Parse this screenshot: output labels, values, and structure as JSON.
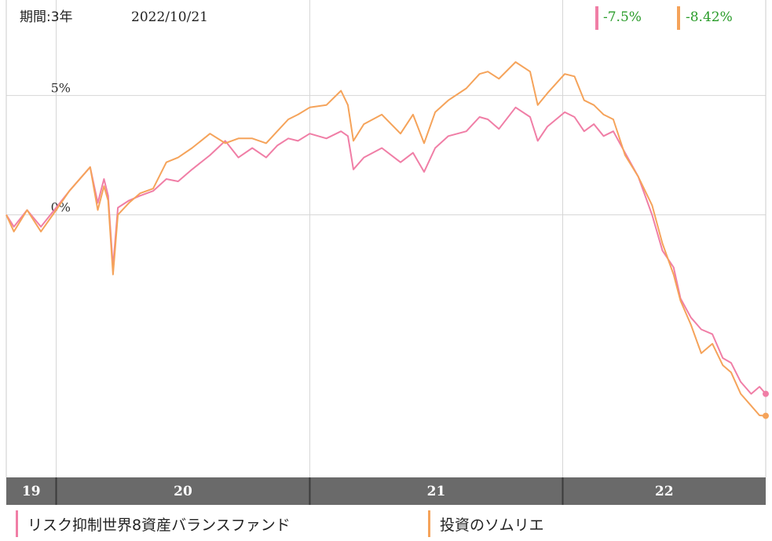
{
  "header": {
    "period_label": "期間:3年",
    "date": "2022/10/21"
  },
  "summary": [
    {
      "value": "-7.5%",
      "color": "#f07ea6"
    },
    {
      "value": "-8.42%",
      "color": "#f5a35a"
    }
  ],
  "colors": {
    "positive_text": "#2a9c2a",
    "axis_band": "#6a6a6a",
    "grid": "#d6d6d6"
  },
  "legend": [
    {
      "label": "リスク抑制世界8資産バランスファンド",
      "color": "#f07ea6"
    },
    {
      "label": "投資のソムリエ",
      "color": "#f5a35a"
    }
  ],
  "chart_data": {
    "type": "line",
    "x_range": [
      "2019-10-21",
      "2022-10-21"
    ],
    "ylim": [
      -11,
      9
    ],
    "grid": true,
    "y_ticks": [
      {
        "value": 0,
        "label": "0%"
      },
      {
        "value": 5,
        "label": "5%"
      }
    ],
    "year_ticks": [
      {
        "date": "2019-10-21",
        "label": "19"
      },
      {
        "date": "2020-01-01",
        "label": "20"
      },
      {
        "date": "2021-01-01",
        "label": "21"
      },
      {
        "date": "2022-01-01",
        "label": "22"
      }
    ],
    "series": [
      {
        "name": "リスク抑制世界8資産バランスファンド",
        "color": "#f07ea6",
        "points": [
          [
            "2019-10-21",
            0.0
          ],
          [
            "2019-11-01",
            -0.5
          ],
          [
            "2019-11-20",
            0.2
          ],
          [
            "2019-12-10",
            -0.5
          ],
          [
            "2020-01-01",
            0.3
          ],
          [
            "2020-01-20",
            1.0
          ],
          [
            "2020-02-19",
            2.0
          ],
          [
            "2020-03-01",
            0.5
          ],
          [
            "2020-03-10",
            1.5
          ],
          [
            "2020-03-16",
            0.8
          ],
          [
            "2020-03-23",
            -2.2
          ],
          [
            "2020-03-30",
            0.3
          ],
          [
            "2020-04-15",
            0.6
          ],
          [
            "2020-05-01",
            0.8
          ],
          [
            "2020-05-20",
            1.0
          ],
          [
            "2020-06-08",
            1.5
          ],
          [
            "2020-06-25",
            1.4
          ],
          [
            "2020-07-15",
            1.9
          ],
          [
            "2020-08-10",
            2.5
          ],
          [
            "2020-09-01",
            3.1
          ],
          [
            "2020-09-20",
            2.4
          ],
          [
            "2020-10-10",
            2.8
          ],
          [
            "2020-10-30",
            2.4
          ],
          [
            "2020-11-15",
            2.9
          ],
          [
            "2020-12-01",
            3.2
          ],
          [
            "2020-12-15",
            3.1
          ],
          [
            "2021-01-01",
            3.4
          ],
          [
            "2021-01-25",
            3.2
          ],
          [
            "2021-02-15",
            3.5
          ],
          [
            "2021-02-25",
            3.3
          ],
          [
            "2021-03-05",
            1.9
          ],
          [
            "2021-03-20",
            2.4
          ],
          [
            "2021-04-15",
            2.8
          ],
          [
            "2021-05-12",
            2.2
          ],
          [
            "2021-05-30",
            2.6
          ],
          [
            "2021-06-15",
            1.8
          ],
          [
            "2021-07-01",
            2.8
          ],
          [
            "2021-07-20",
            3.3
          ],
          [
            "2021-08-15",
            3.5
          ],
          [
            "2021-09-03",
            4.1
          ],
          [
            "2021-09-15",
            4.0
          ],
          [
            "2021-10-01",
            3.6
          ],
          [
            "2021-10-25",
            4.5
          ],
          [
            "2021-11-15",
            4.1
          ],
          [
            "2021-11-26",
            3.1
          ],
          [
            "2021-12-10",
            3.7
          ],
          [
            "2022-01-04",
            4.3
          ],
          [
            "2022-01-18",
            4.1
          ],
          [
            "2022-02-01",
            3.5
          ],
          [
            "2022-02-15",
            3.8
          ],
          [
            "2022-03-01",
            3.3
          ],
          [
            "2022-03-15",
            3.5
          ],
          [
            "2022-04-01",
            2.6
          ],
          [
            "2022-04-20",
            1.6
          ],
          [
            "2022-05-10",
            0.0
          ],
          [
            "2022-05-25",
            -1.5
          ],
          [
            "2022-06-10",
            -2.2
          ],
          [
            "2022-06-20",
            -3.5
          ],
          [
            "2022-07-05",
            -4.3
          ],
          [
            "2022-07-20",
            -4.8
          ],
          [
            "2022-08-05",
            -5.0
          ],
          [
            "2022-08-20",
            -6.0
          ],
          [
            "2022-09-01",
            -6.2
          ],
          [
            "2022-09-15",
            -7.0
          ],
          [
            "2022-09-30",
            -7.5
          ],
          [
            "2022-10-12",
            -7.2
          ],
          [
            "2022-10-21",
            -7.5
          ]
        ]
      },
      {
        "name": "投資のソムリエ",
        "color": "#f5a35a",
        "points": [
          [
            "2019-10-21",
            0.0
          ],
          [
            "2019-11-01",
            -0.7
          ],
          [
            "2019-11-20",
            0.2
          ],
          [
            "2019-12-10",
            -0.7
          ],
          [
            "2020-01-01",
            0.2
          ],
          [
            "2020-01-20",
            1.0
          ],
          [
            "2020-02-19",
            2.0
          ],
          [
            "2020-03-01",
            0.2
          ],
          [
            "2020-03-10",
            1.2
          ],
          [
            "2020-03-16",
            0.6
          ],
          [
            "2020-03-23",
            -2.5
          ],
          [
            "2020-03-30",
            0.0
          ],
          [
            "2020-04-15",
            0.5
          ],
          [
            "2020-05-01",
            0.9
          ],
          [
            "2020-05-20",
            1.1
          ],
          [
            "2020-06-08",
            2.2
          ],
          [
            "2020-06-25",
            2.4
          ],
          [
            "2020-07-15",
            2.8
          ],
          [
            "2020-08-10",
            3.4
          ],
          [
            "2020-09-01",
            3.0
          ],
          [
            "2020-09-20",
            3.2
          ],
          [
            "2020-10-10",
            3.2
          ],
          [
            "2020-10-30",
            3.0
          ],
          [
            "2020-11-15",
            3.5
          ],
          [
            "2020-12-01",
            4.0
          ],
          [
            "2020-12-15",
            4.2
          ],
          [
            "2021-01-01",
            4.5
          ],
          [
            "2021-01-25",
            4.6
          ],
          [
            "2021-02-15",
            5.2
          ],
          [
            "2021-02-25",
            4.6
          ],
          [
            "2021-03-05",
            3.1
          ],
          [
            "2021-03-20",
            3.8
          ],
          [
            "2021-04-15",
            4.2
          ],
          [
            "2021-05-12",
            3.4
          ],
          [
            "2021-05-30",
            4.2
          ],
          [
            "2021-06-15",
            3.0
          ],
          [
            "2021-07-01",
            4.3
          ],
          [
            "2021-07-20",
            4.8
          ],
          [
            "2021-08-15",
            5.3
          ],
          [
            "2021-09-03",
            5.9
          ],
          [
            "2021-09-15",
            6.0
          ],
          [
            "2021-10-01",
            5.7
          ],
          [
            "2021-10-25",
            6.4
          ],
          [
            "2021-11-15",
            6.0
          ],
          [
            "2021-11-26",
            4.6
          ],
          [
            "2021-12-10",
            5.1
          ],
          [
            "2022-01-04",
            5.9
          ],
          [
            "2022-01-18",
            5.8
          ],
          [
            "2022-02-01",
            4.8
          ],
          [
            "2022-02-15",
            4.6
          ],
          [
            "2022-03-01",
            4.2
          ],
          [
            "2022-03-15",
            4.0
          ],
          [
            "2022-04-01",
            2.5
          ],
          [
            "2022-04-20",
            1.6
          ],
          [
            "2022-05-10",
            0.4
          ],
          [
            "2022-05-25",
            -1.2
          ],
          [
            "2022-06-10",
            -2.5
          ],
          [
            "2022-06-20",
            -3.6
          ],
          [
            "2022-07-05",
            -4.6
          ],
          [
            "2022-07-20",
            -5.8
          ],
          [
            "2022-08-05",
            -5.4
          ],
          [
            "2022-08-20",
            -6.3
          ],
          [
            "2022-09-01",
            -6.6
          ],
          [
            "2022-09-15",
            -7.5
          ],
          [
            "2022-09-30",
            -8.0
          ],
          [
            "2022-10-12",
            -8.4
          ],
          [
            "2022-10-21",
            -8.42
          ]
        ]
      }
    ]
  }
}
